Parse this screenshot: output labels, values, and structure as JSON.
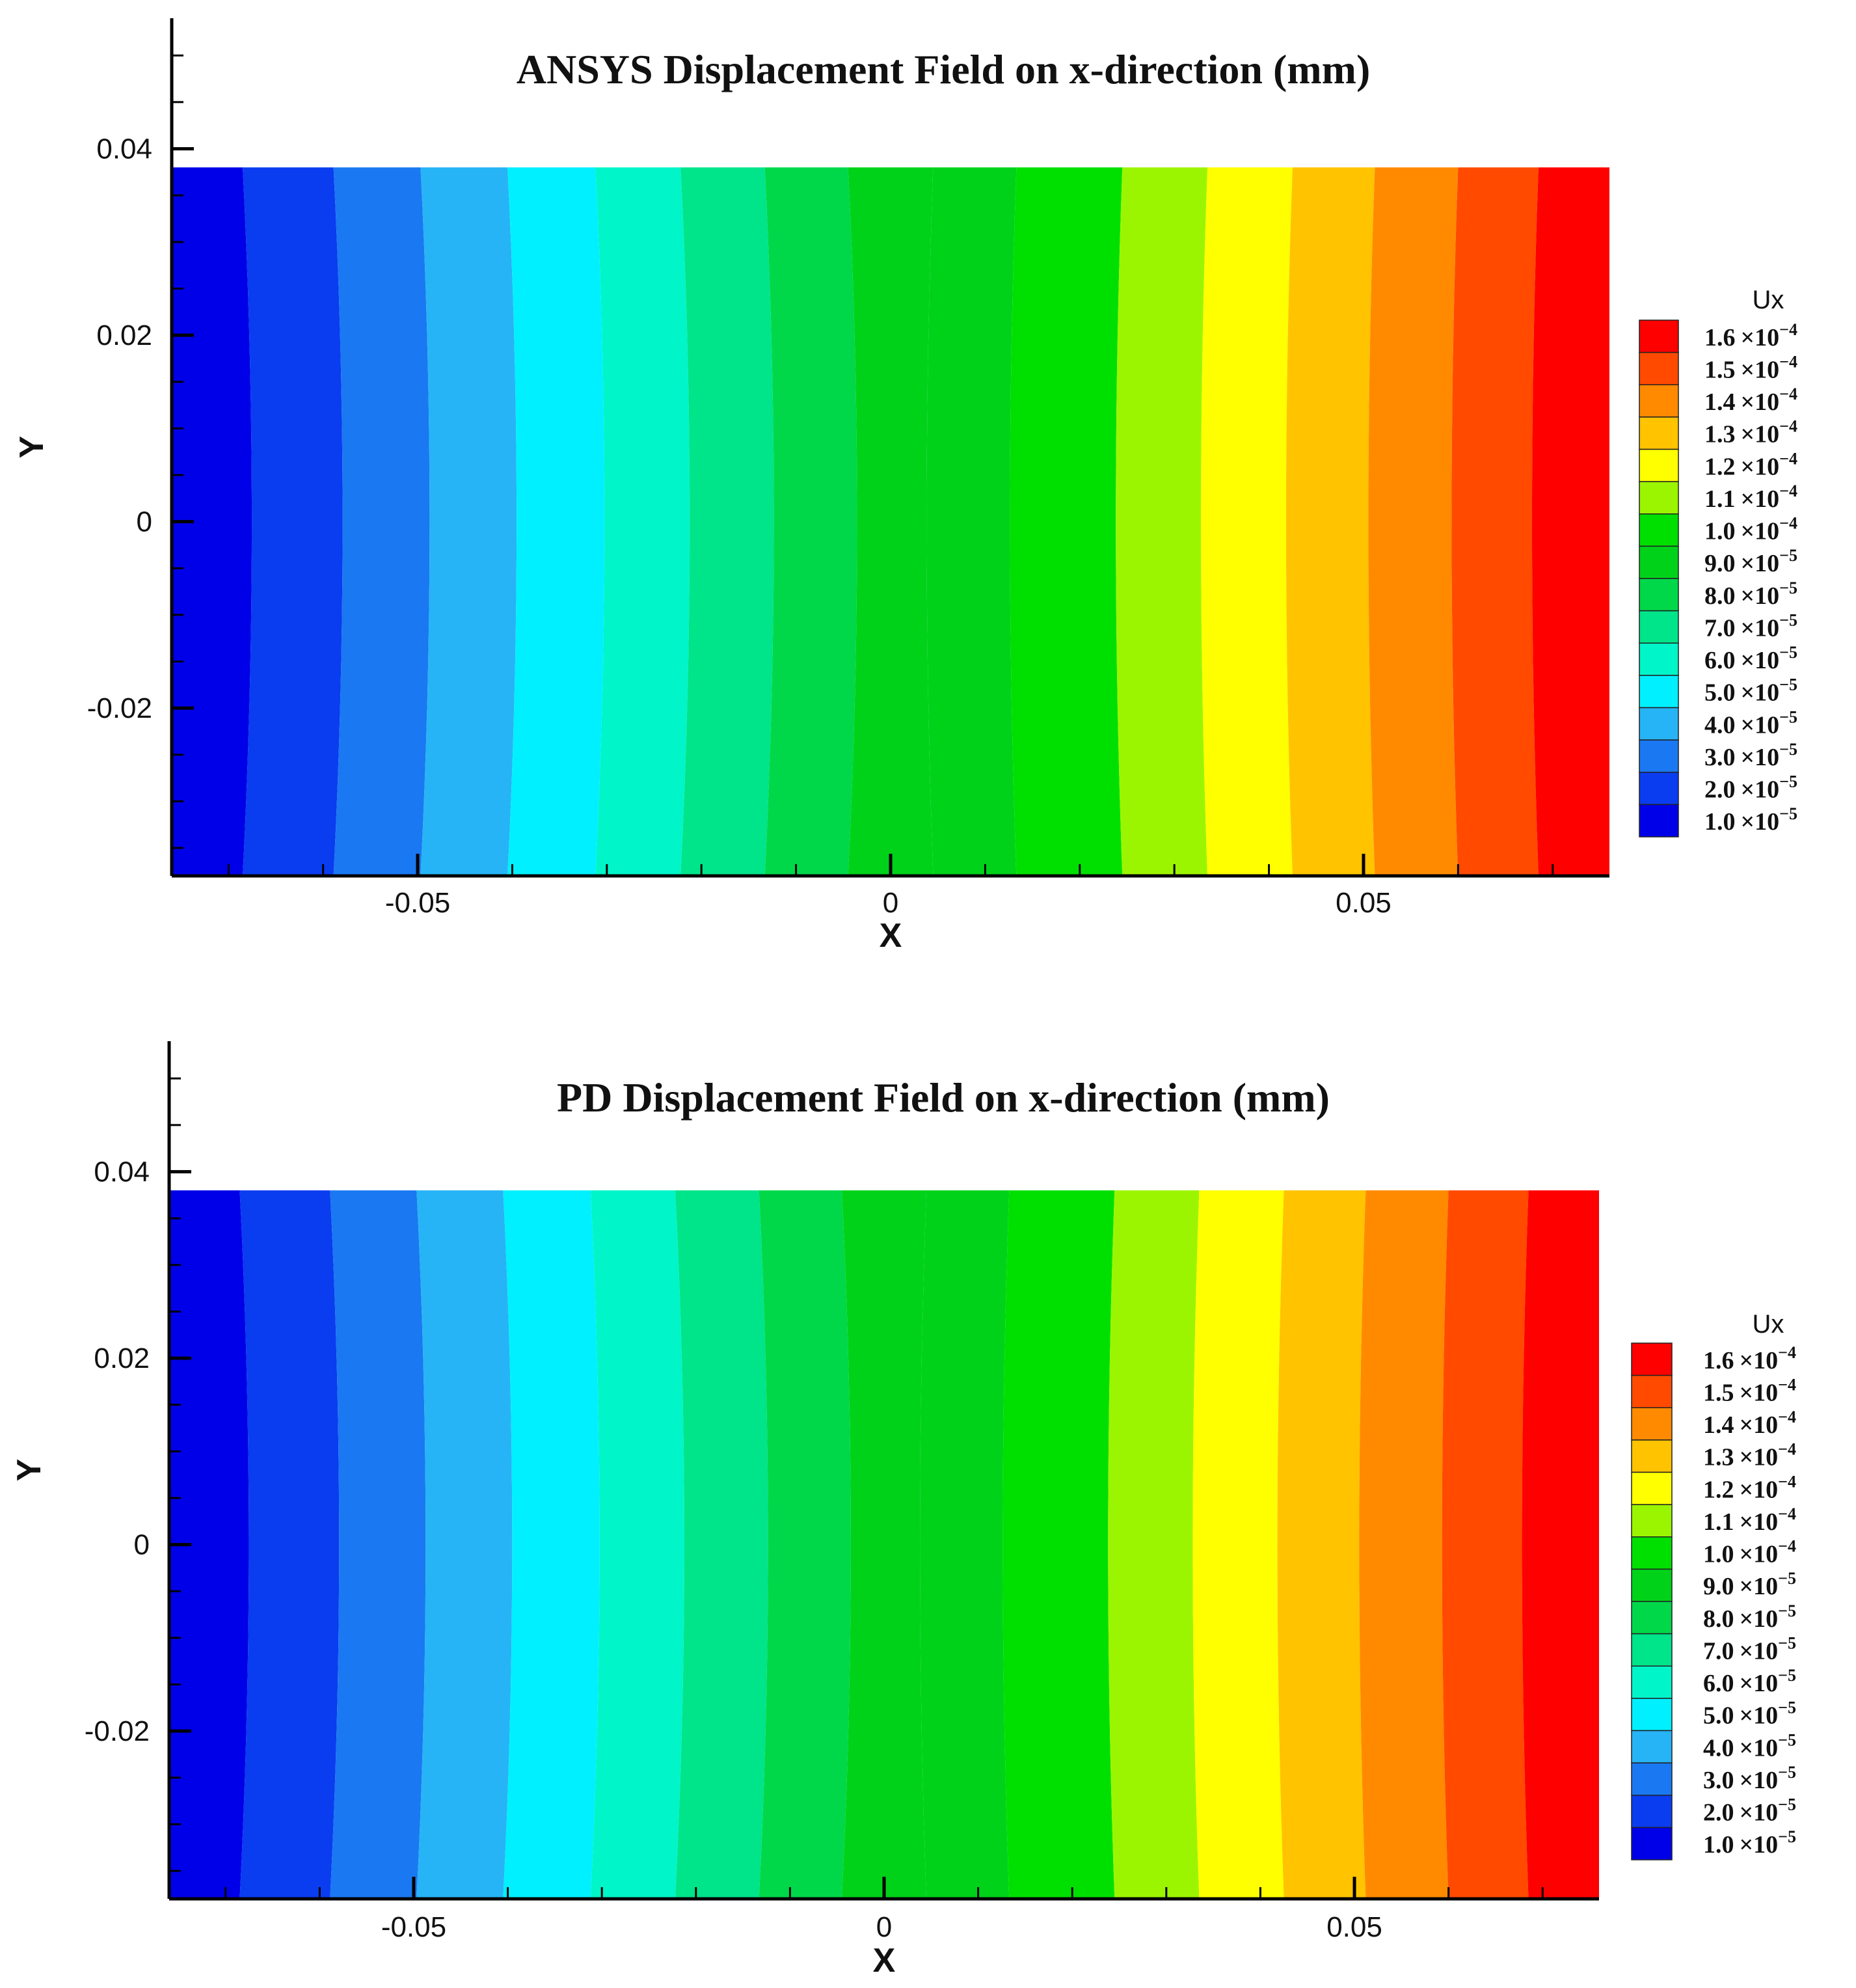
{
  "chart_data": [
    {
      "type": "heatmap",
      "title": "ANSYS Displacement Field on x-direction (mm)",
      "xlabel": "X",
      "ylabel": "Y",
      "xlim": [
        -0.076,
        0.076
      ],
      "ylim": [
        -0.038,
        0.054
      ],
      "domain_y": [
        -0.038,
        0.038
      ],
      "x_ticks": [
        -0.05,
        0,
        0.05
      ],
      "x_tick_labels": [
        "-0.05",
        "0",
        "0.05"
      ],
      "y_ticks": [
        -0.02,
        0,
        0.02,
        0.04
      ],
      "y_tick_labels": [
        "-0.02",
        "0",
        "0.02",
        "0.04"
      ],
      "band_edges_x": [
        -0.076,
        -0.0685,
        -0.0589,
        -0.0497,
        -0.0405,
        -0.0312,
        -0.0222,
        -0.0133,
        -0.0045,
        0.0045,
        0.0133,
        0.0245,
        0.0335,
        0.0425,
        0.0512,
        0.06,
        0.0685,
        0.076
      ],
      "band_values": [
        1e-05,
        2e-05,
        3e-05,
        4e-05,
        5e-05,
        6e-05,
        7e-05,
        8e-05,
        9e-05,
        9e-05,
        0.0001,
        0.00011,
        0.00012,
        0.00013,
        0.00014,
        0.00015,
        0.00016
      ],
      "legend": {
        "title": "Ux",
        "position": "right",
        "levels": [
          0.00016,
          0.00015,
          0.00014,
          0.00013,
          0.00012,
          0.00011,
          0.0001,
          9e-05,
          8e-05,
          7e-05,
          6e-05,
          5e-05,
          4e-05,
          3e-05,
          2e-05,
          1e-05
        ],
        "labels": [
          {
            "m": "1.6",
            "e": "−4"
          },
          {
            "m": "1.5",
            "e": "−4"
          },
          {
            "m": "1.4",
            "e": "−4"
          },
          {
            "m": "1.3",
            "e": "−4"
          },
          {
            "m": "1.2",
            "e": "−4"
          },
          {
            "m": "1.1",
            "e": "−4"
          },
          {
            "m": "1.0",
            "e": "−4"
          },
          {
            "m": "9.0",
            "e": "−5"
          },
          {
            "m": "8.0",
            "e": "−5"
          },
          {
            "m": "7.0",
            "e": "−5"
          },
          {
            "m": "6.0",
            "e": "−5"
          },
          {
            "m": "5.0",
            "e": "−5"
          },
          {
            "m": "4.0",
            "e": "−5"
          },
          {
            "m": "3.0",
            "e": "−5"
          },
          {
            "m": "2.0",
            "e": "−5"
          },
          {
            "m": "1.0",
            "e": "−5"
          }
        ],
        "times": "×10"
      },
      "colormap": [
        "#0000e8",
        "#0a3cf0",
        "#1a78f2",
        "#26b4f6",
        "#00f0ff",
        "#00f5c8",
        "#00e48a",
        "#00d84a",
        "#00d21a",
        "#00d21a",
        "#00e000",
        "#9cf500",
        "#ffff00",
        "#ffc300",
        "#ff8a00",
        "#ff4a00",
        "#ff0000"
      ],
      "legend_colors": [
        "#ff0000",
        "#ff4a00",
        "#ff8a00",
        "#ffc300",
        "#ffff00",
        "#9cf500",
        "#00e000",
        "#00d21a",
        "#00d84a",
        "#00e48a",
        "#00f5c8",
        "#00f0ff",
        "#26b4f6",
        "#1a78f2",
        "#0a3cf0",
        "#0000e8"
      ]
    },
    {
      "type": "heatmap",
      "title": "PD Displacement Field on x-direction (mm)",
      "xlabel": "X",
      "ylabel": "Y",
      "xlim": [
        -0.076,
        0.076
      ],
      "ylim": [
        -0.038,
        0.054
      ],
      "domain_y": [
        -0.038,
        0.038
      ],
      "x_ticks": [
        -0.05,
        0,
        0.05
      ],
      "x_tick_labels": [
        "-0.05",
        "0",
        "0.05"
      ],
      "y_ticks": [
        -0.02,
        0,
        0.02,
        0.04
      ],
      "y_tick_labels": [
        "-0.02",
        "0",
        "0.02",
        "0.04"
      ],
      "band_edges_x": [
        -0.076,
        -0.0685,
        -0.0589,
        -0.0497,
        -0.0405,
        -0.0312,
        -0.0222,
        -0.0133,
        -0.0045,
        0.0045,
        0.0133,
        0.0245,
        0.0335,
        0.0425,
        0.0512,
        0.06,
        0.0685,
        0.076
      ],
      "band_values": [
        1e-05,
        2e-05,
        3e-05,
        4e-05,
        5e-05,
        6e-05,
        7e-05,
        8e-05,
        9e-05,
        9e-05,
        0.0001,
        0.00011,
        0.00012,
        0.00013,
        0.00014,
        0.00015,
        0.00016
      ],
      "legend": {
        "title": "Ux",
        "position": "right",
        "levels": [
          0.00016,
          0.00015,
          0.00014,
          0.00013,
          0.00012,
          0.00011,
          0.0001,
          9e-05,
          8e-05,
          7e-05,
          6e-05,
          5e-05,
          4e-05,
          3e-05,
          2e-05,
          1e-05
        ],
        "labels": [
          {
            "m": "1.6",
            "e": "−4"
          },
          {
            "m": "1.5",
            "e": "−4"
          },
          {
            "m": "1.4",
            "e": "−4"
          },
          {
            "m": "1.3",
            "e": "−4"
          },
          {
            "m": "1.2",
            "e": "−4"
          },
          {
            "m": "1.1",
            "e": "−4"
          },
          {
            "m": "1.0",
            "e": "−4"
          },
          {
            "m": "9.0",
            "e": "−5"
          },
          {
            "m": "8.0",
            "e": "−5"
          },
          {
            "m": "7.0",
            "e": "−5"
          },
          {
            "m": "6.0",
            "e": "−5"
          },
          {
            "m": "5.0",
            "e": "−5"
          },
          {
            "m": "4.0",
            "e": "−5"
          },
          {
            "m": "3.0",
            "e": "−5"
          },
          {
            "m": "2.0",
            "e": "−5"
          },
          {
            "m": "1.0",
            "e": "−5"
          }
        ],
        "times": "×10"
      },
      "colormap": [
        "#0000e8",
        "#0a3cf0",
        "#1a78f2",
        "#26b4f6",
        "#00f0ff",
        "#00f5c8",
        "#00e48a",
        "#00d84a",
        "#00d21a",
        "#00d21a",
        "#00e000",
        "#9cf500",
        "#ffff00",
        "#ffc300",
        "#ff8a00",
        "#ff4a00",
        "#ff0000"
      ],
      "legend_colors": [
        "#ff0000",
        "#ff4a00",
        "#ff8a00",
        "#ffc300",
        "#ffff00",
        "#9cf500",
        "#00e000",
        "#00d21a",
        "#00d84a",
        "#00e48a",
        "#00f5c8",
        "#00f0ff",
        "#26b4f6",
        "#1a78f2",
        "#0a3cf0",
        "#0000e8"
      ]
    }
  ]
}
